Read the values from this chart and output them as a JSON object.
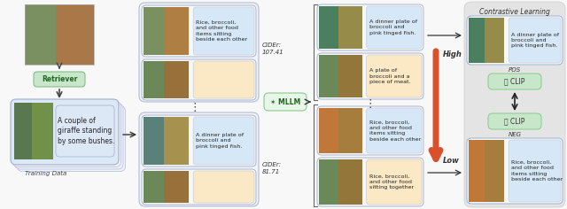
{
  "fig_width": 6.4,
  "fig_height": 2.36,
  "dpi": 100,
  "bg_color": "#f8f8f8",
  "colors": {
    "blue_box": "#d6e8f7",
    "orange_box": "#fbe8c4",
    "green_box": "#c8e6c9",
    "contrastive_bg": "#e8e8e8",
    "arrow_red": "#d9502a",
    "text_dark": "#222222"
  },
  "food_texts": {
    "top1": "Rice, broccoli,\nand other food\nitems sitting\nbeside each other",
    "bot1": "A dinner plate of\nbroccoli and\npink tinged fish.",
    "right_top1": "A dinner plate of\nbroccoli and\npink tinged fish.",
    "right_mid1": "A plate of\nbroccoli and a\npiece of meat.",
    "right_mid2": "Rice, broccoli,\nand other food\nitems sitting\nbeside each other",
    "right_bot1": "Rice, broccoli,\nand other food\nsitting together",
    "contrastive_pos": "A dinner plate of\nbroccoli and\npink tinged fish.",
    "contrastive_neg": "Rice, broccoli,\nand other food\nitems sitting\nbeside each other"
  }
}
